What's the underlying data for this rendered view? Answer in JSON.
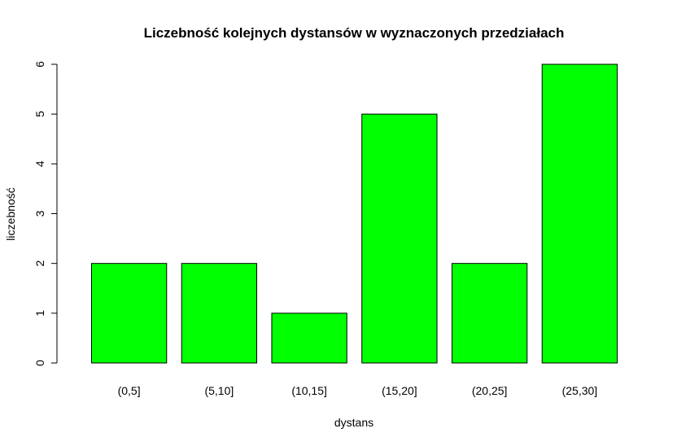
{
  "chart_data": {
    "type": "bar",
    "title": "Liczebność kolejnych dystansów w wyznaczonych przedziałach",
    "xlabel": "dystans",
    "ylabel": "liczebność",
    "categories": [
      "(0,5]",
      "(5,10]",
      "(10,15]",
      "(15,20]",
      "(20,25]",
      "(25,30]"
    ],
    "values": [
      2,
      2,
      1,
      5,
      2,
      6
    ],
    "ylim": [
      0,
      6
    ],
    "yticks": [
      "0",
      "1",
      "2",
      "3",
      "4",
      "5",
      "6"
    ],
    "bar_color": "#00ff00",
    "grid": false,
    "legend": "none"
  }
}
